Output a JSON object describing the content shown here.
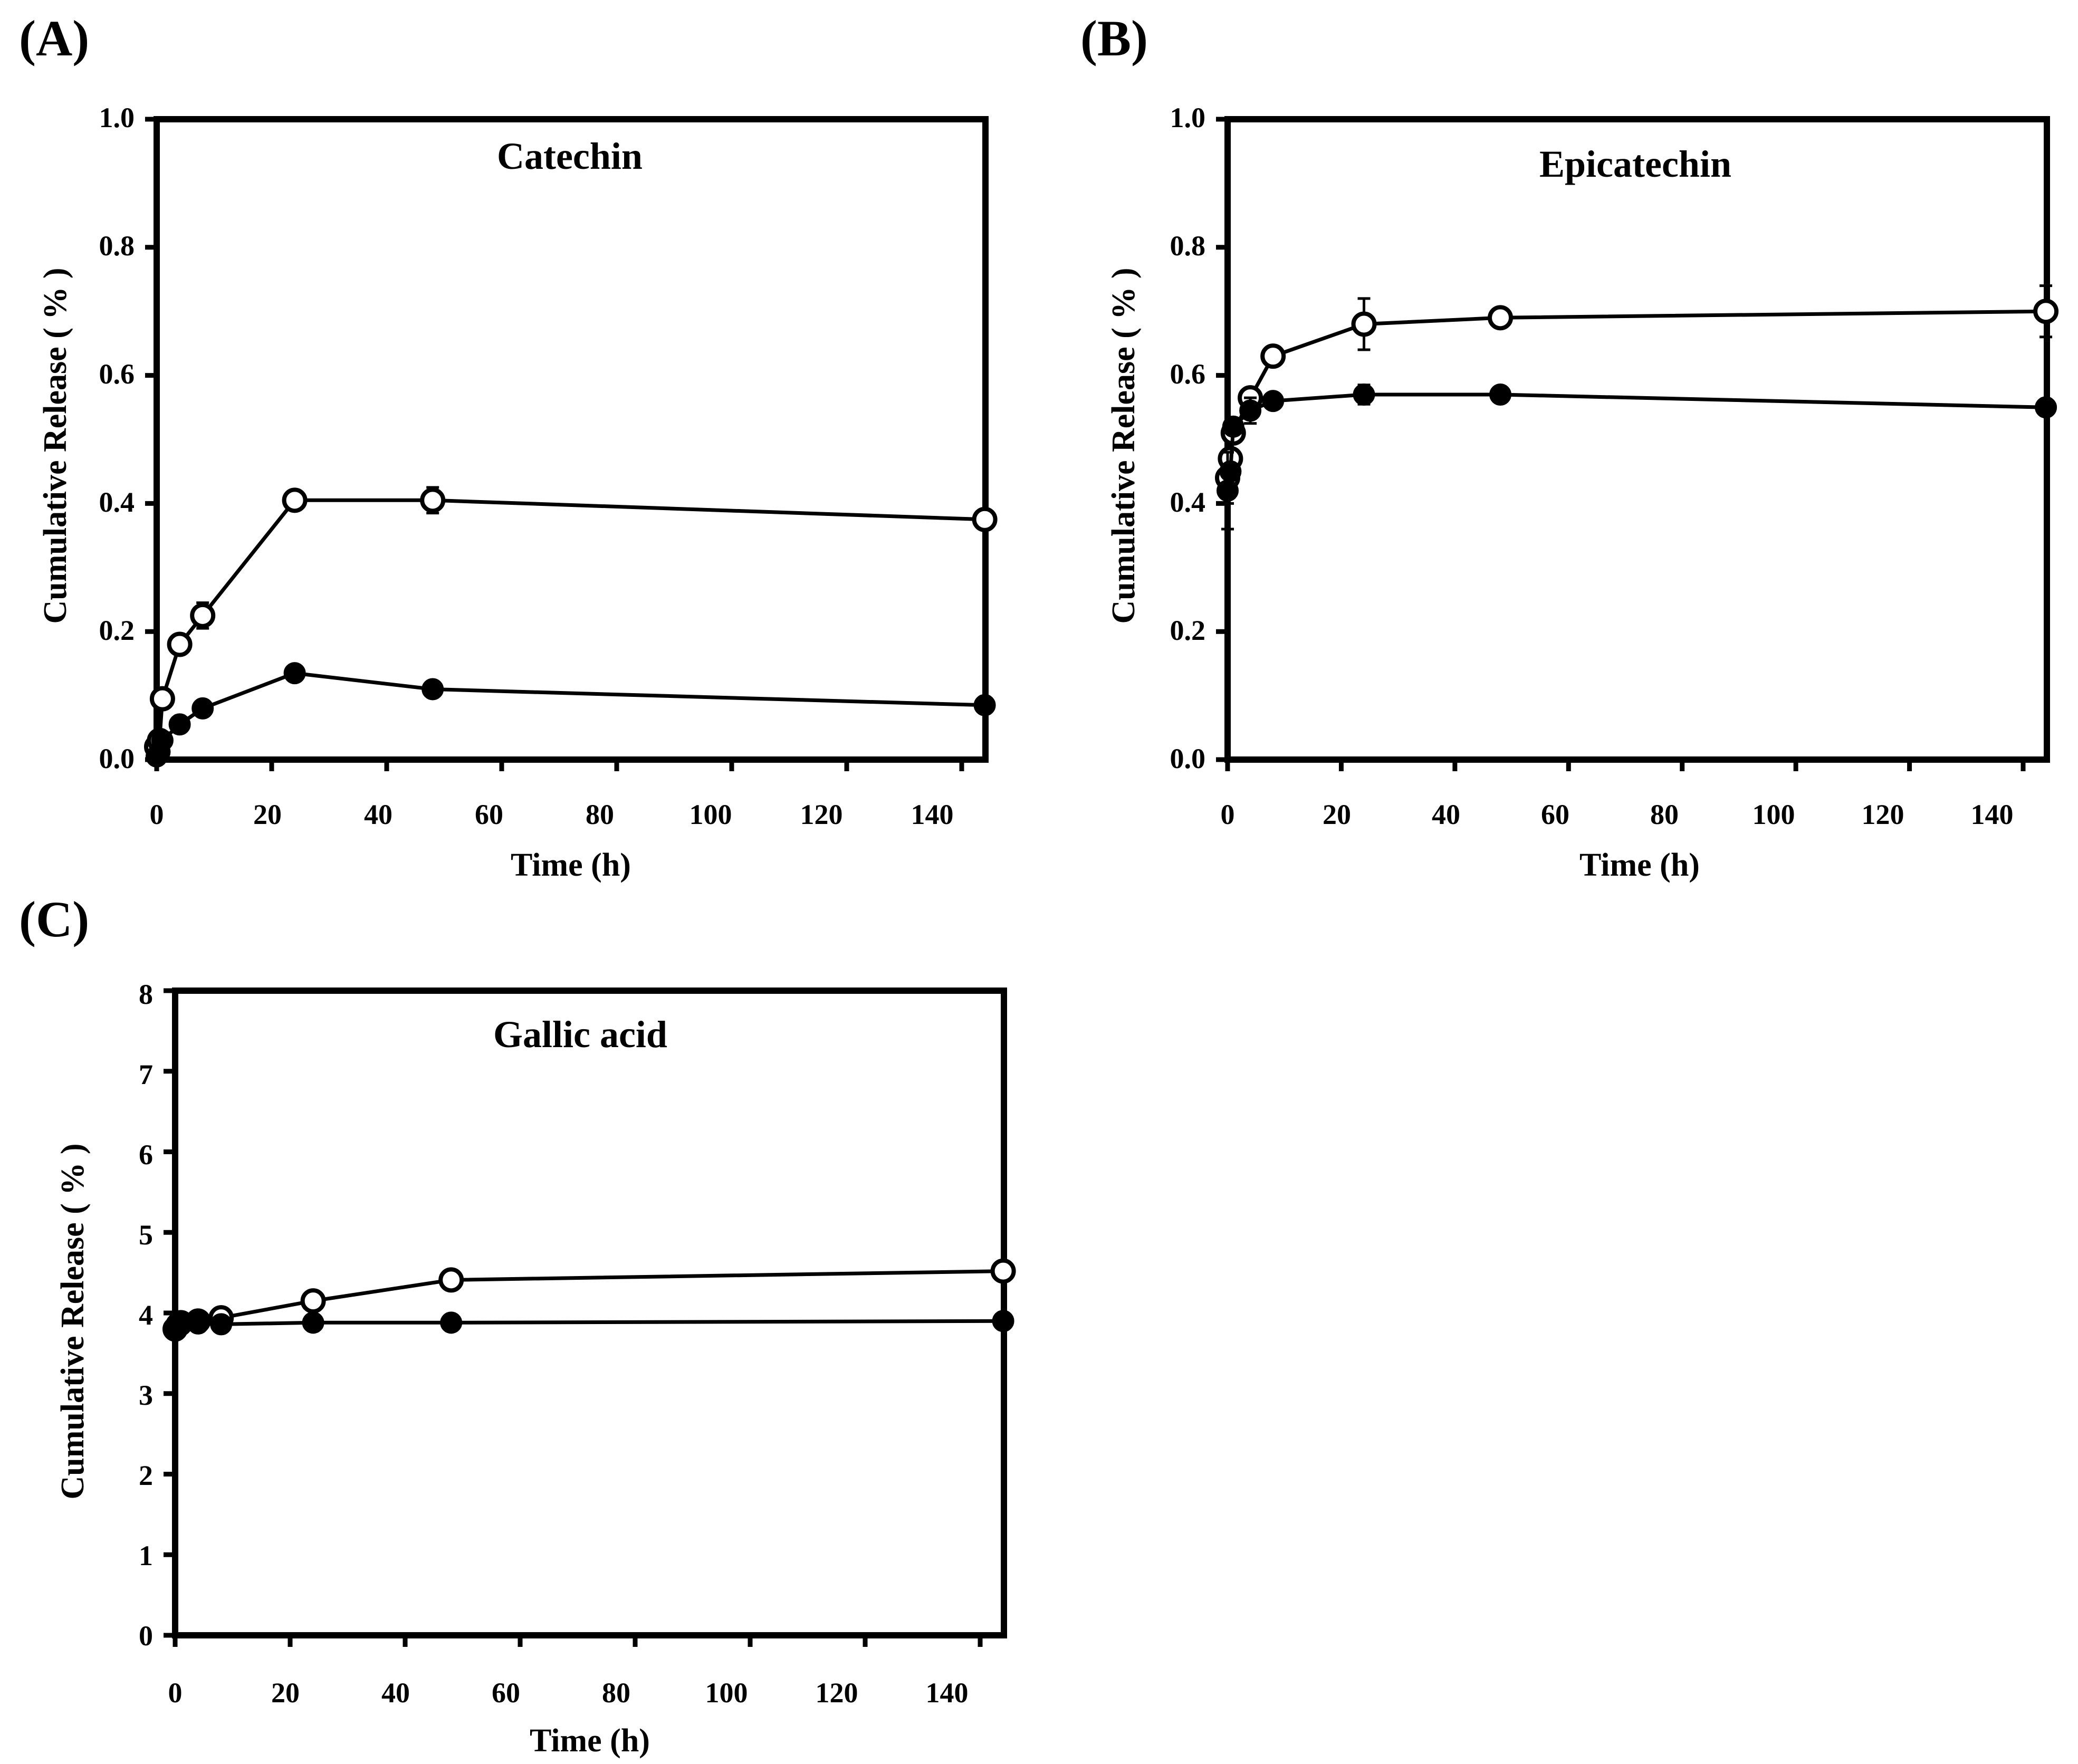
{
  "chart_data": [
    {
      "panel": "(A)",
      "type": "line",
      "title": "Catechin",
      "xlabel": "Time (h)",
      "ylabel": "Cumulative Release ( % )",
      "xlim": [
        0,
        150
      ],
      "ylim": [
        0,
        1.0
      ],
      "xticks": [
        "0",
        "20",
        "40",
        "60",
        "80",
        "100",
        "120",
        "140"
      ],
      "yticks": [
        "0.0",
        "0.2",
        "0.4",
        "0.6",
        "0.8",
        "1.0"
      ],
      "x": [
        0,
        0.5,
        1,
        4,
        8,
        24,
        48,
        144
      ],
      "series": [
        {
          "name": "open circles",
          "marker": "open",
          "values": [
            0.02,
            0.03,
            0.095,
            0.18,
            0.225,
            0.405,
            0.405,
            0.375
          ],
          "errors": [
            0,
            0,
            0,
            0,
            0.02,
            0,
            0.02,
            0
          ]
        },
        {
          "name": "filled circles",
          "marker": "filled",
          "values": [
            0.005,
            0.012,
            0.03,
            0.055,
            0.08,
            0.135,
            0.11,
            0.085
          ],
          "errors": [
            0,
            0,
            0,
            0,
            0,
            0,
            0,
            0
          ]
        }
      ]
    },
    {
      "panel": "(B)",
      "type": "line",
      "title": "Epicatechin",
      "xlabel": "Time (h)",
      "ylabel": "Cumulative Release ( % )",
      "xlim": [
        0,
        150
      ],
      "ylim": [
        0,
        1.0
      ],
      "xticks": [
        "0",
        "20",
        "40",
        "60",
        "80",
        "100",
        "120",
        "140"
      ],
      "yticks": [
        "0.0",
        "0.2",
        "0.4",
        "0.6",
        "0.8",
        "1.0"
      ],
      "x": [
        0,
        0.5,
        1,
        4,
        8,
        24,
        48,
        144
      ],
      "series": [
        {
          "name": "open circles",
          "marker": "open",
          "values": [
            0.44,
            0.47,
            0.51,
            0.565,
            0.63,
            0.68,
            0.69,
            0.7
          ],
          "errors": [
            0.04,
            0,
            0,
            0,
            0,
            0.04,
            0.01,
            0.04
          ]
        },
        {
          "name": "filled circles",
          "marker": "filled",
          "values": [
            0.42,
            0.45,
            0.52,
            0.545,
            0.56,
            0.57,
            0.57,
            0.55
          ],
          "errors": [
            0.06,
            0,
            0,
            0.02,
            0,
            0.015,
            0,
            0
          ]
        }
      ]
    },
    {
      "panel": "(C)",
      "type": "line",
      "title": "Gallic acid",
      "xlabel": "Time (h)",
      "ylabel": "Cumulative Release ( % )",
      "xlim": [
        0,
        150
      ],
      "ylim": [
        0,
        8
      ],
      "xticks": [
        "0",
        "20",
        "40",
        "60",
        "80",
        "100",
        "120",
        "140"
      ],
      "yticks": [
        "0",
        "1",
        "2",
        "3",
        "4",
        "5",
        "6",
        "7",
        "8"
      ],
      "x": [
        0,
        0.5,
        1,
        4,
        8,
        24,
        48,
        144
      ],
      "series": [
        {
          "name": "open circles",
          "marker": "open",
          "values": [
            3.8,
            3.85,
            3.88,
            3.9,
            3.94,
            4.15,
            4.41,
            4.52
          ],
          "errors": [
            0,
            0,
            0,
            0,
            0,
            0,
            0,
            0.12
          ]
        },
        {
          "name": "filled circles",
          "marker": "filled",
          "values": [
            3.78,
            3.82,
            3.85,
            3.87,
            3.86,
            3.88,
            3.88,
            3.9
          ],
          "errors": [
            0,
            0,
            0,
            0,
            0,
            0,
            0,
            0
          ]
        }
      ]
    }
  ]
}
